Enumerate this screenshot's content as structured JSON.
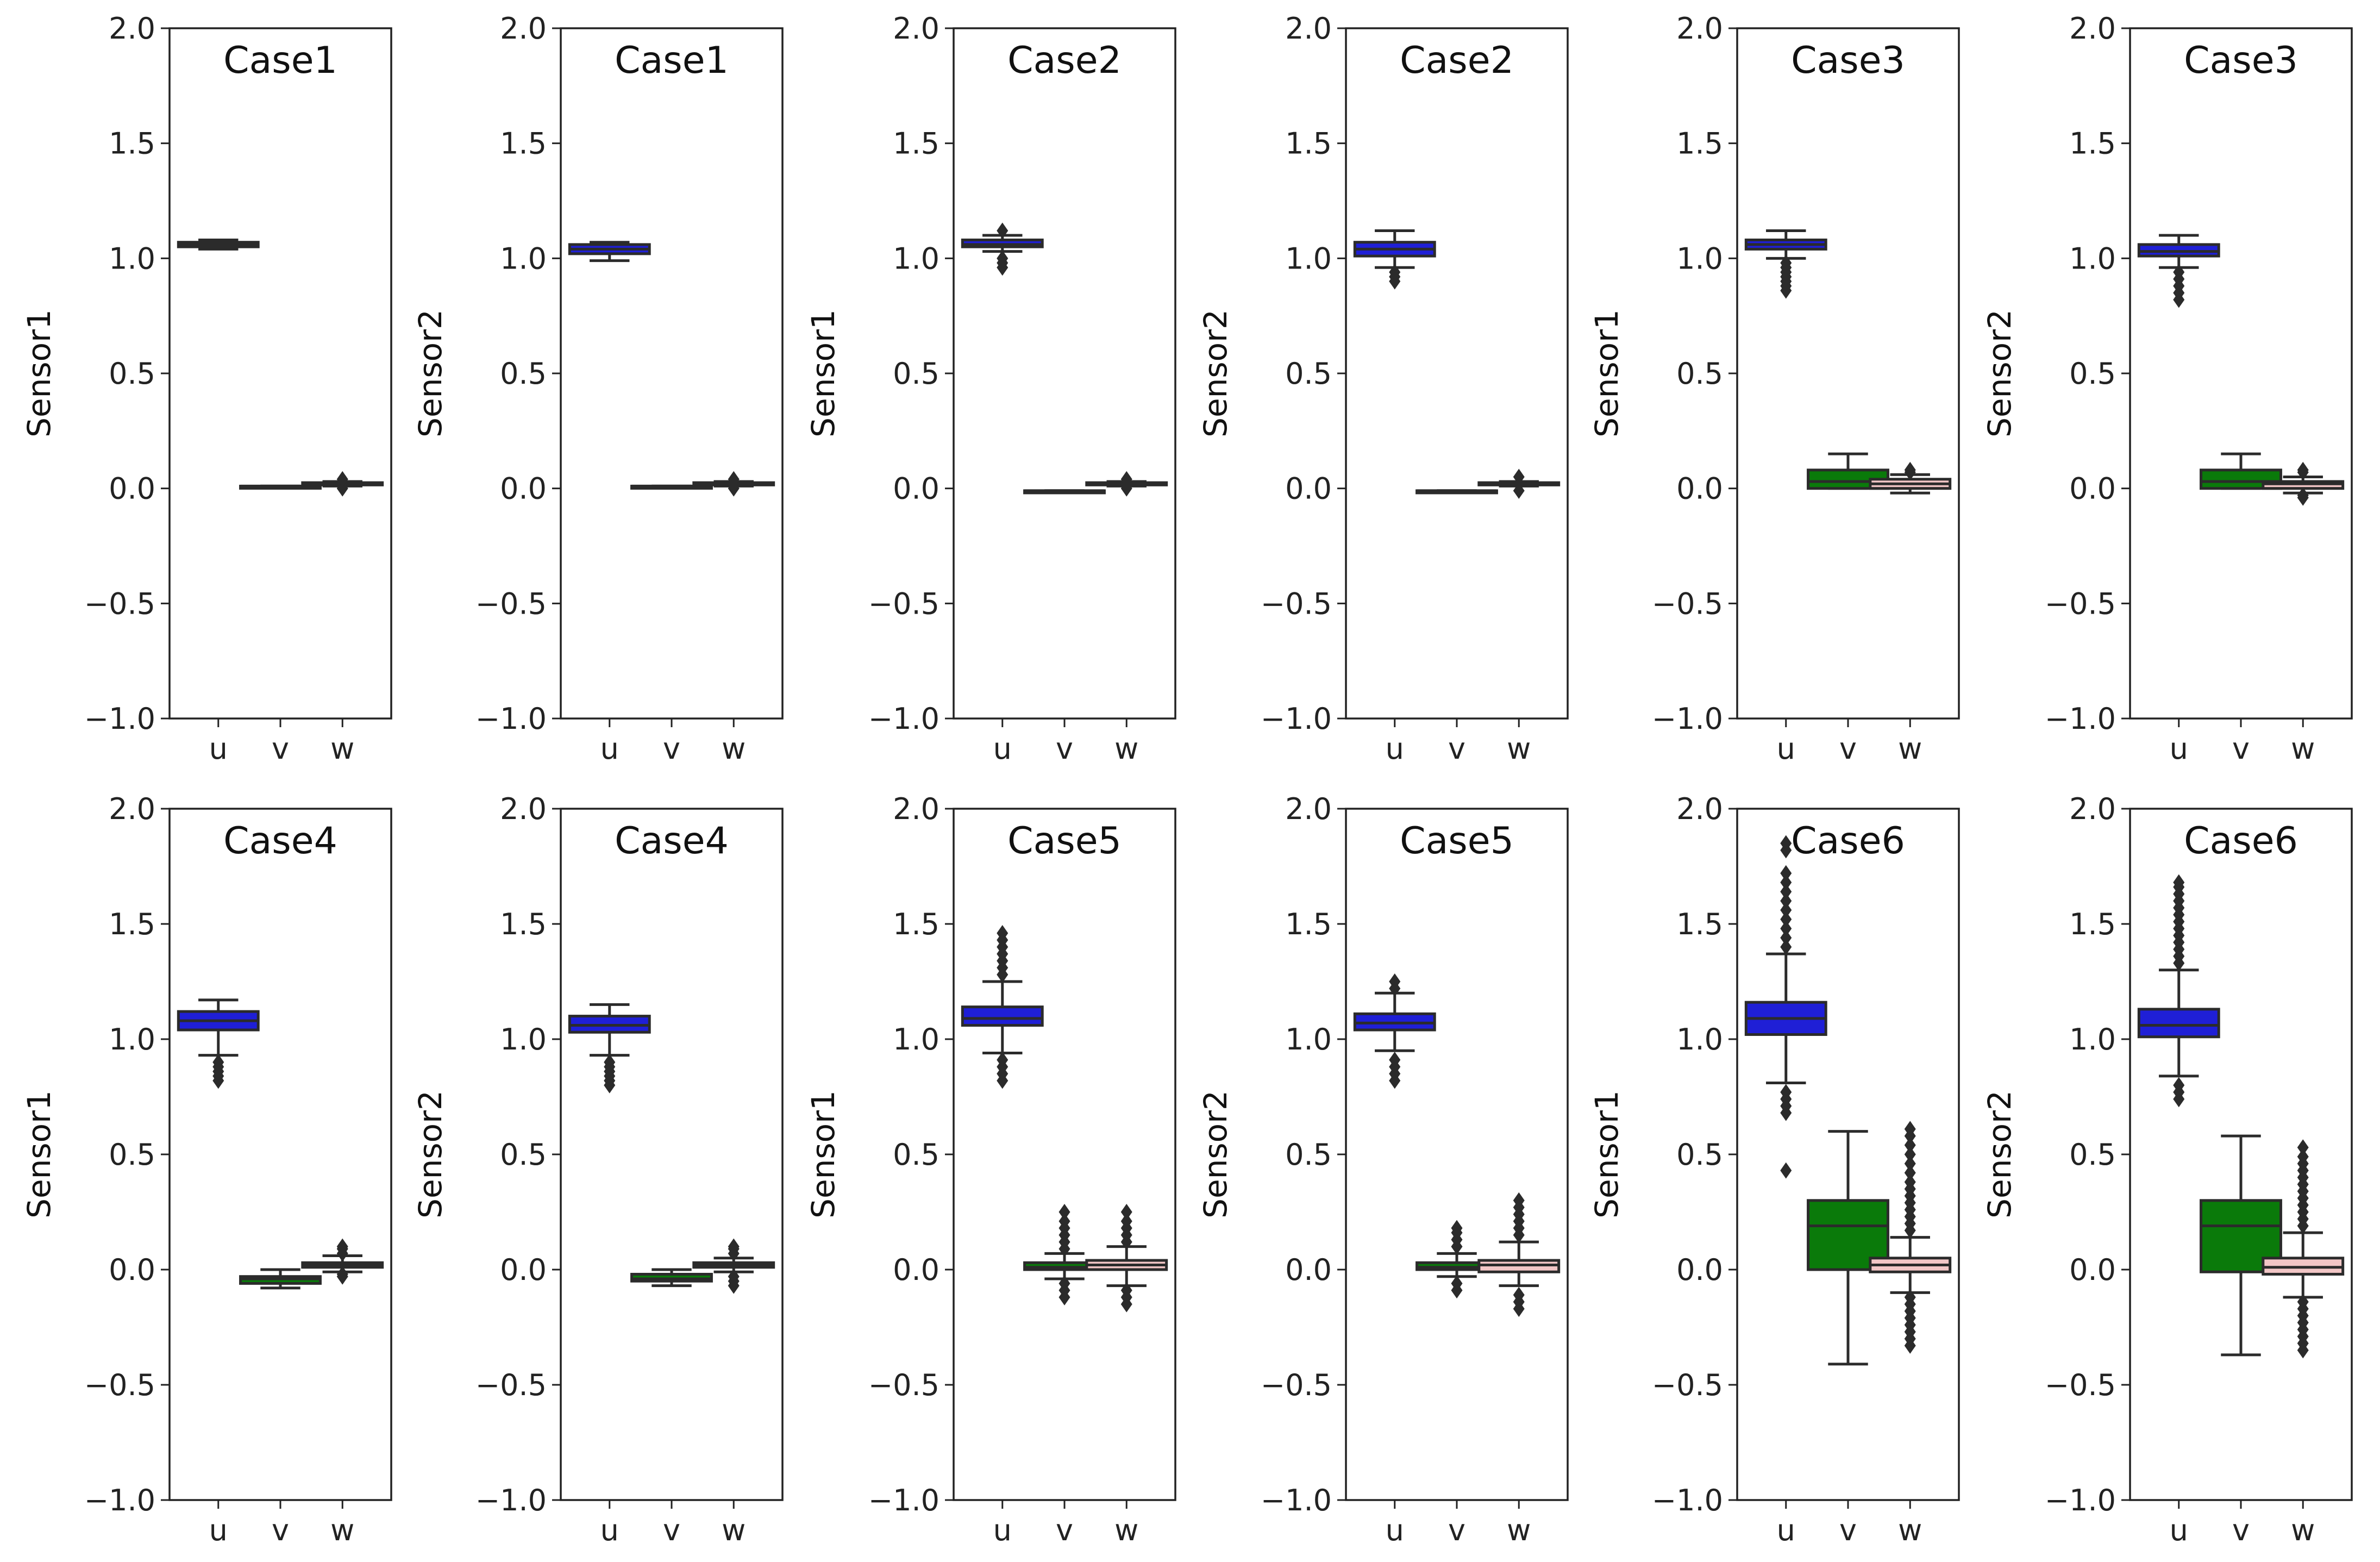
{
  "figure": {
    "categories": [
      "u",
      "v",
      "w"
    ],
    "yticks": [
      2.0,
      1.5,
      1.0,
      0.5,
      0.0,
      -0.5,
      -1.0
    ],
    "ylim": [
      -1.0,
      2.0
    ],
    "palette": {
      "u": "#1f1fd6",
      "v": "#0a7a0a",
      "w": "#f2c6c6"
    }
  },
  "chart_data": [
    {
      "type": "box",
      "title": "Case1",
      "ylabel": "Sensor1",
      "ylim": [
        -1.0,
        2.0
      ],
      "boxes": [
        {
          "category": "u",
          "color": "#1f1fd6",
          "q1": 1.05,
          "median": 1.06,
          "q3": 1.07,
          "whisker_low": 1.04,
          "whisker_high": 1.08,
          "outliers": []
        },
        {
          "category": "v",
          "color": "#0a7a0a",
          "q1": 0.01,
          "median": 0.01,
          "q3": 0.01,
          "whisker_low": 0.01,
          "whisker_high": 0.01,
          "outliers": []
        },
        {
          "category": "w",
          "color": "#f2c6c6",
          "q1": 0.015,
          "median": 0.02,
          "q3": 0.025,
          "whisker_low": 0.01,
          "whisker_high": 0.03,
          "outliers": [
            0.0,
            0.04
          ]
        }
      ]
    },
    {
      "type": "box",
      "title": "Case1",
      "ylabel": "Sensor2",
      "ylim": [
        -1.0,
        2.0
      ],
      "boxes": [
        {
          "category": "u",
          "color": "#1f1fd6",
          "q1": 1.02,
          "median": 1.04,
          "q3": 1.06,
          "whisker_low": 0.99,
          "whisker_high": 1.07,
          "outliers": []
        },
        {
          "category": "v",
          "color": "#0a7a0a",
          "q1": 0.01,
          "median": 0.01,
          "q3": 0.01,
          "whisker_low": 0.01,
          "whisker_high": 0.01,
          "outliers": []
        },
        {
          "category": "w",
          "color": "#f2c6c6",
          "q1": 0.015,
          "median": 0.02,
          "q3": 0.025,
          "whisker_low": 0.01,
          "whisker_high": 0.03,
          "outliers": [
            0.0,
            0.04
          ]
        }
      ]
    },
    {
      "type": "box",
      "title": "Case2",
      "ylabel": "Sensor1",
      "ylim": [
        -1.0,
        2.0
      ],
      "boxes": [
        {
          "category": "u",
          "color": "#1f1fd6",
          "q1": 1.05,
          "median": 1.06,
          "q3": 1.08,
          "whisker_low": 1.03,
          "whisker_high": 1.1,
          "outliers": [
            0.96,
            0.98,
            1.0,
            1.12
          ]
        },
        {
          "category": "v",
          "color": "#0a7a0a",
          "q1": -0.01,
          "median": -0.01,
          "q3": -0.01,
          "whisker_low": -0.01,
          "whisker_high": -0.01,
          "outliers": []
        },
        {
          "category": "w",
          "color": "#f2c6c6",
          "q1": 0.015,
          "median": 0.02,
          "q3": 0.025,
          "whisker_low": 0.01,
          "whisker_high": 0.03,
          "outliers": [
            0.0,
            0.04
          ]
        }
      ]
    },
    {
      "type": "box",
      "title": "Case2",
      "ylabel": "Sensor2",
      "ylim": [
        -1.0,
        2.0
      ],
      "boxes": [
        {
          "category": "u",
          "color": "#1f1fd6",
          "q1": 1.01,
          "median": 1.04,
          "q3": 1.07,
          "whisker_low": 0.96,
          "whisker_high": 1.12,
          "outliers": [
            0.9,
            0.92,
            0.94
          ]
        },
        {
          "category": "v",
          "color": "#0a7a0a",
          "q1": -0.01,
          "median": -0.01,
          "q3": -0.01,
          "whisker_low": -0.01,
          "whisker_high": -0.01,
          "outliers": []
        },
        {
          "category": "w",
          "color": "#f2c6c6",
          "q1": 0.015,
          "median": 0.02,
          "q3": 0.025,
          "whisker_low": 0.01,
          "whisker_high": 0.03,
          "outliers": [
            -0.01,
            0.05
          ]
        }
      ]
    },
    {
      "type": "box",
      "title": "Case3",
      "ylabel": "Sensor1",
      "ylim": [
        -1.0,
        2.0
      ],
      "boxes": [
        {
          "category": "u",
          "color": "#1f1fd6",
          "q1": 1.04,
          "median": 1.06,
          "q3": 1.08,
          "whisker_low": 1.0,
          "whisker_high": 1.12,
          "outliers": [
            0.86,
            0.88,
            0.9,
            0.92,
            0.94,
            0.96,
            0.98
          ]
        },
        {
          "category": "v",
          "color": "#0a7a0a",
          "q1": 0.0,
          "median": 0.03,
          "q3": 0.08,
          "whisker_low": 0.0,
          "whisker_high": 0.15,
          "outliers": []
        },
        {
          "category": "w",
          "color": "#f2c6c6",
          "q1": 0.0,
          "median": 0.02,
          "q3": 0.04,
          "whisker_low": -0.02,
          "whisker_high": 0.06,
          "outliers": [
            0.07,
            0.08
          ]
        }
      ]
    },
    {
      "type": "box",
      "title": "Case3",
      "ylabel": "Sensor2",
      "ylim": [
        -1.0,
        2.0
      ],
      "boxes": [
        {
          "category": "u",
          "color": "#1f1fd6",
          "q1": 1.01,
          "median": 1.03,
          "q3": 1.06,
          "whisker_low": 0.96,
          "whisker_high": 1.1,
          "outliers": [
            0.82,
            0.85,
            0.88,
            0.91,
            0.94
          ]
        },
        {
          "category": "v",
          "color": "#0a7a0a",
          "q1": 0.0,
          "median": 0.03,
          "q3": 0.08,
          "whisker_low": 0.0,
          "whisker_high": 0.15,
          "outliers": []
        },
        {
          "category": "w",
          "color": "#f2c6c6",
          "q1": 0.0,
          "median": 0.02,
          "q3": 0.03,
          "whisker_low": -0.02,
          "whisker_high": 0.05,
          "outliers": [
            -0.04,
            -0.03,
            0.07,
            0.08
          ]
        }
      ]
    },
    {
      "type": "box",
      "title": "Case4",
      "ylabel": "Sensor1",
      "ylim": [
        -1.0,
        2.0
      ],
      "boxes": [
        {
          "category": "u",
          "color": "#1f1fd6",
          "q1": 1.04,
          "median": 1.08,
          "q3": 1.12,
          "whisker_low": 0.93,
          "whisker_high": 1.17,
          "outliers": [
            0.82,
            0.84,
            0.86,
            0.88,
            0.9
          ]
        },
        {
          "category": "v",
          "color": "#0a7a0a",
          "q1": -0.06,
          "median": -0.04,
          "q3": -0.03,
          "whisker_low": -0.08,
          "whisker_high": 0.0,
          "outliers": []
        },
        {
          "category": "w",
          "color": "#f2c6c6",
          "q1": 0.01,
          "median": 0.02,
          "q3": 0.03,
          "whisker_low": -0.01,
          "whisker_high": 0.06,
          "outliers": [
            -0.03,
            -0.02,
            0.07,
            0.09,
            0.1
          ]
        }
      ]
    },
    {
      "type": "box",
      "title": "Case4",
      "ylabel": "Sensor2",
      "ylim": [
        -1.0,
        2.0
      ],
      "boxes": [
        {
          "category": "u",
          "color": "#1f1fd6",
          "q1": 1.03,
          "median": 1.06,
          "q3": 1.1,
          "whisker_low": 0.93,
          "whisker_high": 1.15,
          "outliers": [
            0.8,
            0.82,
            0.84,
            0.86,
            0.88,
            0.9
          ]
        },
        {
          "category": "v",
          "color": "#0a7a0a",
          "q1": -0.05,
          "median": -0.04,
          "q3": -0.02,
          "whisker_low": -0.07,
          "whisker_high": 0.0,
          "outliers": []
        },
        {
          "category": "w",
          "color": "#f2c6c6",
          "q1": 0.01,
          "median": 0.02,
          "q3": 0.03,
          "whisker_low": -0.01,
          "whisker_high": 0.05,
          "outliers": [
            -0.07,
            -0.05,
            -0.03,
            0.07,
            0.09,
            0.1
          ]
        }
      ]
    },
    {
      "type": "box",
      "title": "Case5",
      "ylabel": "Sensor1",
      "ylim": [
        -1.0,
        2.0
      ],
      "boxes": [
        {
          "category": "u",
          "color": "#1f1fd6",
          "q1": 1.06,
          "median": 1.09,
          "q3": 1.14,
          "whisker_low": 0.94,
          "whisker_high": 1.25,
          "outliers": [
            0.82,
            0.85,
            0.88,
            0.91,
            1.28,
            1.31,
            1.34,
            1.37,
            1.4,
            1.43,
            1.46
          ]
        },
        {
          "category": "v",
          "color": "#0a7a0a",
          "q1": 0.0,
          "median": 0.01,
          "q3": 0.03,
          "whisker_low": -0.04,
          "whisker_high": 0.07,
          "outliers": [
            -0.12,
            -0.09,
            -0.06,
            0.09,
            0.12,
            0.15,
            0.18,
            0.21,
            0.25
          ]
        },
        {
          "category": "w",
          "color": "#f2c6c6",
          "q1": 0.0,
          "median": 0.02,
          "q3": 0.04,
          "whisker_low": -0.07,
          "whisker_high": 0.1,
          "outliers": [
            -0.15,
            -0.12,
            -0.09,
            0.12,
            0.15,
            0.18,
            0.21,
            0.25
          ]
        }
      ]
    },
    {
      "type": "box",
      "title": "Case5",
      "ylabel": "Sensor2",
      "ylim": [
        -1.0,
        2.0
      ],
      "boxes": [
        {
          "category": "u",
          "color": "#1f1fd6",
          "q1": 1.04,
          "median": 1.07,
          "q3": 1.11,
          "whisker_low": 0.95,
          "whisker_high": 1.2,
          "outliers": [
            0.82,
            0.85,
            0.88,
            0.91,
            1.22,
            1.25
          ]
        },
        {
          "category": "v",
          "color": "#0a7a0a",
          "q1": 0.0,
          "median": 0.01,
          "q3": 0.03,
          "whisker_low": -0.03,
          "whisker_high": 0.07,
          "outliers": [
            -0.09,
            -0.06,
            0.1,
            0.13,
            0.16,
            0.18
          ]
        },
        {
          "category": "w",
          "color": "#f2c6c6",
          "q1": -0.01,
          "median": 0.02,
          "q3": 0.04,
          "whisker_low": -0.07,
          "whisker_high": 0.12,
          "outliers": [
            -0.17,
            -0.14,
            -0.11,
            0.15,
            0.18,
            0.21,
            0.24,
            0.27,
            0.3
          ]
        }
      ]
    },
    {
      "type": "box",
      "title": "Case6",
      "ylabel": "Sensor1",
      "ylim": [
        -1.0,
        2.0
      ],
      "boxes": [
        {
          "category": "u",
          "color": "#1f1fd6",
          "q1": 1.02,
          "median": 1.09,
          "q3": 1.16,
          "whisker_low": 0.81,
          "whisker_high": 1.37,
          "outliers": [
            0.43,
            0.68,
            0.71,
            0.74,
            0.77,
            1.4,
            1.44,
            1.48,
            1.52,
            1.56,
            1.6,
            1.64,
            1.68,
            1.72,
            1.82,
            1.85
          ]
        },
        {
          "category": "v",
          "color": "#0a7a0a",
          "q1": 0.0,
          "median": 0.19,
          "q3": 0.3,
          "whisker_low": -0.41,
          "whisker_high": 0.6,
          "outliers": []
        },
        {
          "category": "w",
          "color": "#f2c6c6",
          "q1": -0.01,
          "median": 0.02,
          "q3": 0.05,
          "whisker_low": -0.1,
          "whisker_high": 0.14,
          "outliers": [
            -0.33,
            -0.3,
            -0.27,
            -0.24,
            -0.21,
            -0.18,
            -0.15,
            -0.12,
            0.17,
            0.2,
            0.23,
            0.26,
            0.29,
            0.32,
            0.35,
            0.38,
            0.42,
            0.46,
            0.5,
            0.54,
            0.58,
            0.61
          ]
        }
      ]
    },
    {
      "type": "box",
      "title": "Case6",
      "ylabel": "Sensor2",
      "ylim": [
        -1.0,
        2.0
      ],
      "boxes": [
        {
          "category": "u",
          "color": "#1f1fd6",
          "q1": 1.01,
          "median": 1.06,
          "q3": 1.13,
          "whisker_low": 0.84,
          "whisker_high": 1.3,
          "outliers": [
            0.74,
            0.77,
            0.8,
            1.33,
            1.36,
            1.39,
            1.42,
            1.45,
            1.48,
            1.51,
            1.54,
            1.57,
            1.6,
            1.63,
            1.66,
            1.68
          ]
        },
        {
          "category": "v",
          "color": "#0a7a0a",
          "q1": -0.01,
          "median": 0.19,
          "q3": 0.3,
          "whisker_low": -0.37,
          "whisker_high": 0.58,
          "outliers": []
        },
        {
          "category": "w",
          "color": "#f2c6c6",
          "q1": -0.02,
          "median": 0.01,
          "q3": 0.05,
          "whisker_low": -0.12,
          "whisker_high": 0.16,
          "outliers": [
            -0.35,
            -0.32,
            -0.29,
            -0.26,
            -0.23,
            -0.2,
            -0.17,
            -0.14,
            0.19,
            0.22,
            0.25,
            0.28,
            0.31,
            0.34,
            0.37,
            0.4,
            0.43,
            0.46,
            0.49,
            0.53
          ]
        }
      ]
    }
  ]
}
